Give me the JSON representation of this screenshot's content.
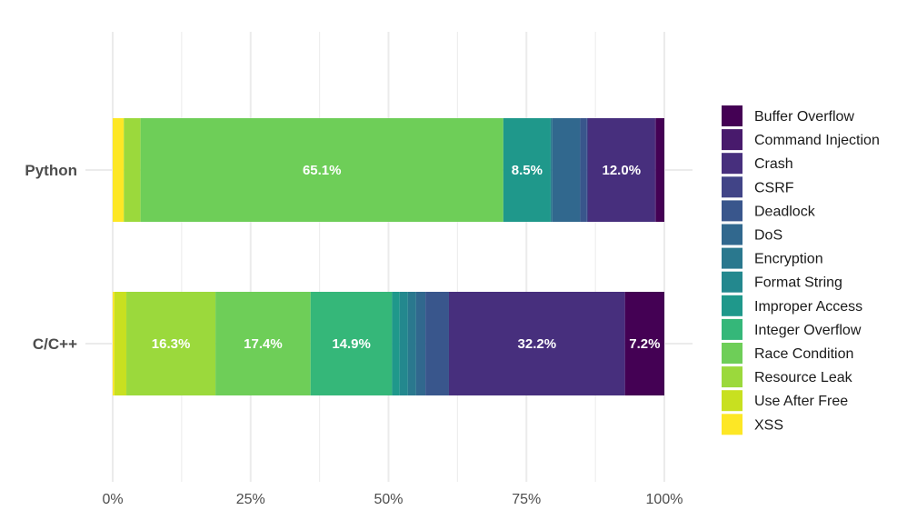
{
  "chart_data": {
    "type": "bar",
    "orientation": "horizontal",
    "stacked": true,
    "normalized": true,
    "title": "",
    "xlabel": "",
    "ylabel": "",
    "xlim": [
      0,
      1
    ],
    "x_ticks": [
      0,
      0.25,
      0.5,
      0.75,
      1
    ],
    "x_tick_labels": [
      "0%",
      "25%",
      "50%",
      "75%",
      "100%"
    ],
    "grid": true,
    "legend_position": "right",
    "categories": [
      "Python",
      "C/C++"
    ],
    "series": [
      {
        "name": "Buffer Overflow",
        "color": "#440154",
        "values": [
          1.5,
          7.2
        ],
        "labels": [
          "",
          "7.2%"
        ]
      },
      {
        "name": "Command Injection",
        "color": "#481a6c",
        "values": [
          0.2,
          0
        ],
        "labels": [
          "",
          ""
        ]
      },
      {
        "name": "Crash",
        "color": "#472f7d",
        "values": [
          12.0,
          32.2
        ],
        "labels": [
          "12.0%",
          "32.2%"
        ]
      },
      {
        "name": "CSRF",
        "color": "#414487",
        "values": [
          0.2,
          0
        ],
        "labels": [
          "",
          ""
        ]
      },
      {
        "name": "Deadlock",
        "color": "#39568c",
        "values": [
          1.2,
          4.3
        ],
        "labels": [
          "",
          ""
        ]
      },
      {
        "name": "DoS",
        "color": "#31688e",
        "values": [
          5.0,
          1.7
        ],
        "labels": [
          "",
          ""
        ]
      },
      {
        "name": "Encryption",
        "color": "#2a788e",
        "values": [
          0.3,
          1.5
        ],
        "labels": [
          "",
          ""
        ]
      },
      {
        "name": "Format String",
        "color": "#23888e",
        "values": [
          0,
          1.5
        ],
        "labels": [
          "",
          ""
        ]
      },
      {
        "name": "Improper Access",
        "color": "#1f988b",
        "values": [
          8.5,
          1.4
        ],
        "labels": [
          "8.5%",
          ""
        ]
      },
      {
        "name": "Integer Overflow",
        "color": "#35b779",
        "values": [
          0,
          14.9
        ],
        "labels": [
          "",
          "14.9%"
        ]
      },
      {
        "name": "Race Condition",
        "color": "#6ece58",
        "values": [
          65.1,
          17.4
        ],
        "labels": [
          "65.1%",
          "17.4%"
        ]
      },
      {
        "name": "Resource Leak",
        "color": "#9bd93c",
        "values": [
          3.0,
          16.3
        ],
        "labels": [
          "",
          "16.3%"
        ]
      },
      {
        "name": "Use After Free",
        "color": "#c8e020",
        "values": [
          0,
          2.2
        ],
        "labels": [
          "",
          ""
        ]
      },
      {
        "name": "XSS",
        "color": "#fde725",
        "values": [
          2.0,
          0.3
        ],
        "labels": [
          "",
          ""
        ]
      }
    ]
  }
}
